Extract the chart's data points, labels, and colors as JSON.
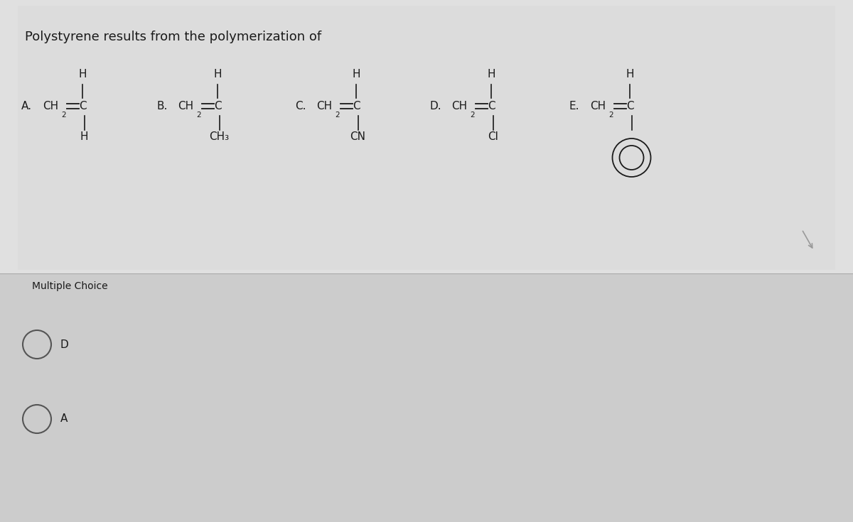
{
  "title": "Polystyrene results from the polymerization of",
  "bg_color": "#d8d8d8",
  "upper_bg": "#e0e0e0",
  "lower_bg": "#cccccc",
  "text_color": "#1a1a1a",
  "title_fontsize": 13,
  "chem_fontsize": 11,
  "mc_label": "Multiple Choice",
  "mc_answers": [
    "D",
    "A"
  ]
}
